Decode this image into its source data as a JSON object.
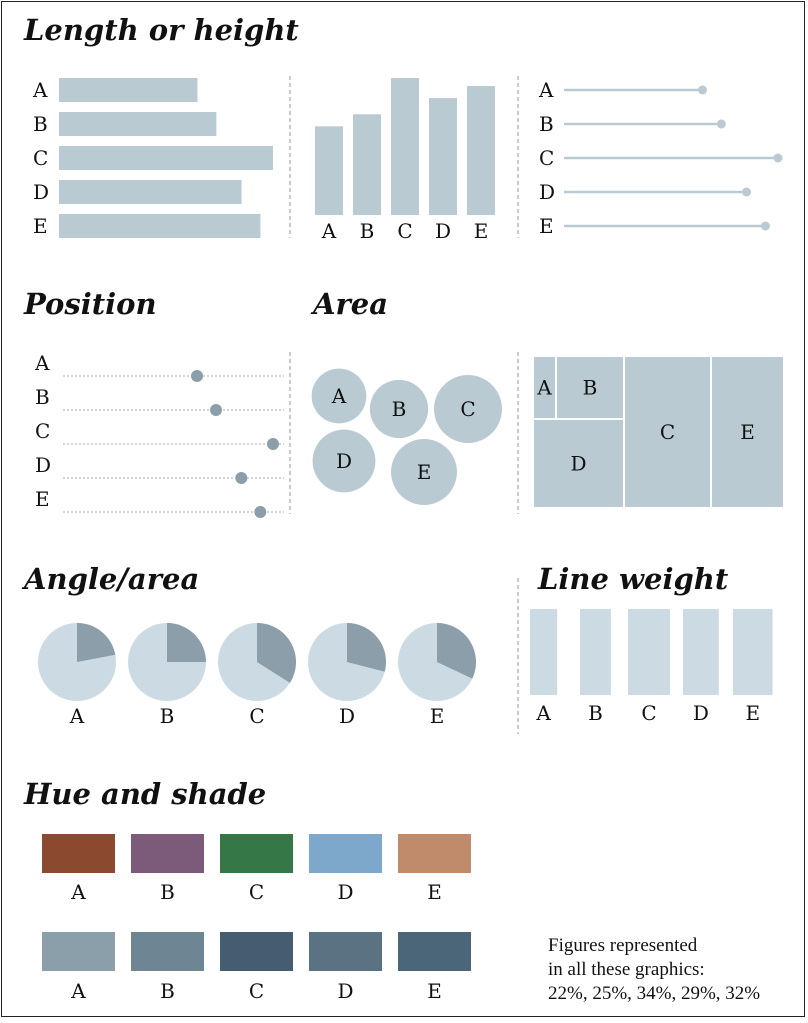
{
  "colors": {
    "mark": "#b9cad3",
    "dot": "#8b9ea9",
    "pie_light": "#ccdbe3",
    "pie_dark": "#8b9ea9",
    "guide": "#aaaaaa"
  },
  "chart_data": {
    "type": "diagram",
    "categories": [
      "A",
      "B",
      "C",
      "D",
      "E"
    ],
    "values": [
      22,
      25,
      34,
      29,
      32
    ],
    "unit": "%",
    "sections": [
      {
        "key": "length",
        "title": "Length or height",
        "encodings": [
          "horizontal-bar",
          "vertical-bar",
          "lollipop"
        ]
      },
      {
        "key": "position",
        "title": "Position",
        "encodings": [
          "dot-position"
        ]
      },
      {
        "key": "area",
        "title": "Area",
        "encodings": [
          "bubble",
          "treemap"
        ]
      },
      {
        "key": "angle",
        "title": "Angle/area",
        "encodings": [
          "pie"
        ]
      },
      {
        "key": "lineweight",
        "title": "Line weight",
        "encodings": [
          "bar-width"
        ]
      },
      {
        "key": "hue",
        "title": "Hue and shade",
        "encodings": [
          "hue-swatch",
          "shade-swatch"
        ]
      }
    ],
    "hue_colors": [
      "#8b4a2f",
      "#7c5a7a",
      "#367747",
      "#7ea8cb",
      "#c08b6b"
    ],
    "shade_colors": [
      "#8a9faa",
      "#6e8593",
      "#455d70",
      "#5a7281",
      "#4b6678"
    ],
    "note": [
      "Figures represented",
      "in all these graphics:",
      "22%, 25%, 34%, 29%, 32%"
    ]
  }
}
